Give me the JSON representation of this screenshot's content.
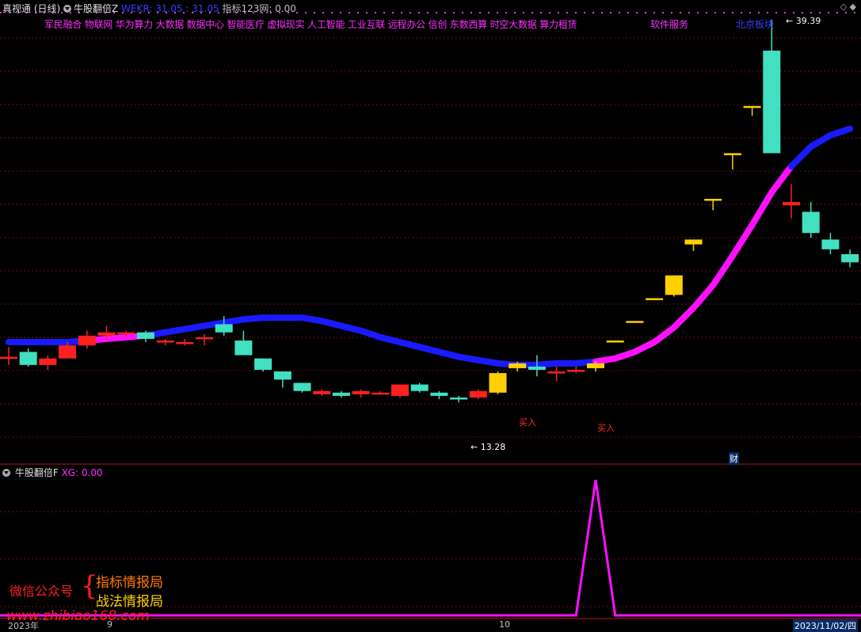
{
  "header": {
    "app_title": "真视通 (日线)",
    "indicator_name": "牛股翻倍Z",
    "wekr_label": "WEKR: 31.05",
    "wekr_value2": ": 31.05",
    "index_label": "指标123网: 0.00"
  },
  "concepts": {
    "main_list": "军民融合 物联网 华为算力 大数据 数据中心 智能医疗 虚拟现实 人工智能 工业互联 远程办公 信创 东数西算 时空大数据 算力租赁",
    "software": "软件服务",
    "beijing": "北京板块"
  },
  "annotations": {
    "high": "39.39",
    "low": "13.28",
    "buy_1": "买入",
    "buy_2": "买入",
    "cai_badge": "财"
  },
  "subchart": {
    "title": "牛股翻倍F",
    "xg_label": "XG: 0.00"
  },
  "promo": {
    "wechat": "微信公众号",
    "line1": "指标情报局",
    "line2": "战法情报局",
    "url": "www.zhibiao168.com"
  },
  "axis": {
    "year": "2023年",
    "m9": "9",
    "m10": "10",
    "last_date": "2023/11/02/四"
  },
  "colors": {
    "up": "#ff2020",
    "down": "#40e0c0",
    "gold": "#ffd000",
    "ma_blue": "#1a1aff",
    "ma_pink": "#ff10ff",
    "grid": "#6a1010"
  },
  "chart_data": {
    "type": "candlestick",
    "price_range": [
      13.28,
      39.39
    ],
    "candles": [
      {
        "o": 18.7,
        "c": 18.6,
        "h": 19.3,
        "l": 18.2,
        "k": "cross"
      },
      {
        "o": 19.0,
        "c": 18.2,
        "h": 19.2,
        "l": 18.1,
        "k": "down"
      },
      {
        "o": 18.2,
        "c": 18.6,
        "h": 18.8,
        "l": 17.9,
        "k": "up"
      },
      {
        "o": 18.6,
        "c": 19.4,
        "h": 19.6,
        "l": 18.6,
        "k": "up"
      },
      {
        "o": 19.4,
        "c": 20.0,
        "h": 20.3,
        "l": 19.2,
        "k": "up"
      },
      {
        "o": 20.0,
        "c": 20.2,
        "h": 20.6,
        "l": 19.7,
        "k": "up"
      },
      {
        "o": 20.2,
        "c": 20.1,
        "h": 20.3,
        "l": 19.9,
        "k": "cross"
      },
      {
        "o": 20.2,
        "c": 19.8,
        "h": 20.3,
        "l": 19.6,
        "k": "down"
      },
      {
        "o": 19.7,
        "c": 19.6,
        "h": 19.8,
        "l": 19.4,
        "k": "cross"
      },
      {
        "o": 19.6,
        "c": 19.6,
        "h": 19.8,
        "l": 19.4,
        "k": "cross"
      },
      {
        "o": 19.9,
        "c": 19.9,
        "h": 20.1,
        "l": 19.4,
        "k": "cross"
      },
      {
        "o": 20.7,
        "c": 20.2,
        "h": 21.2,
        "l": 20.0,
        "k": "down"
      },
      {
        "o": 19.7,
        "c": 18.8,
        "h": 20.3,
        "l": 18.8,
        "k": "down"
      },
      {
        "o": 18.6,
        "c": 17.9,
        "h": 18.6,
        "l": 17.8,
        "k": "down"
      },
      {
        "o": 17.8,
        "c": 17.3,
        "h": 17.8,
        "l": 16.8,
        "k": "down"
      },
      {
        "o": 17.1,
        "c": 16.6,
        "h": 17.1,
        "l": 16.5,
        "k": "down"
      },
      {
        "o": 16.6,
        "c": 16.4,
        "h": 16.7,
        "l": 16.3,
        "k": "up"
      },
      {
        "o": 16.5,
        "c": 16.3,
        "h": 16.6,
        "l": 16.2,
        "k": "down"
      },
      {
        "o": 16.4,
        "c": 16.6,
        "h": 16.7,
        "l": 16.2,
        "k": "up"
      },
      {
        "o": 16.5,
        "c": 16.5,
        "h": 16.6,
        "l": 16.4,
        "k": "cross"
      },
      {
        "o": 16.3,
        "c": 17.0,
        "h": 17.0,
        "l": 16.2,
        "k": "up"
      },
      {
        "o": 17.0,
        "c": 16.6,
        "h": 17.1,
        "l": 16.5,
        "k": "down"
      },
      {
        "o": 16.5,
        "c": 16.3,
        "h": 16.6,
        "l": 16.1,
        "k": "down"
      },
      {
        "o": 16.2,
        "c": 16.1,
        "h": 16.3,
        "l": 15.9,
        "k": "down"
      },
      {
        "o": 16.2,
        "c": 16.6,
        "h": 16.7,
        "l": 16.1,
        "k": "up"
      },
      {
        "o": 16.5,
        "c": 17.7,
        "h": 17.8,
        "l": 16.4,
        "k": "gold"
      },
      {
        "o": 18.0,
        "c": 18.3,
        "h": 18.4,
        "l": 17.8,
        "k": "gold"
      },
      {
        "o": 18.1,
        "c": 17.9,
        "h": 18.8,
        "l": 17.5,
        "k": "down"
      },
      {
        "o": 17.8,
        "c": 17.8,
        "h": 18.1,
        "l": 17.2,
        "k": "cross"
      },
      {
        "o": 17.9,
        "c": 17.9,
        "h": 18.1,
        "l": 17.7,
        "k": "cross"
      },
      {
        "o": 18.0,
        "c": 18.3,
        "h": 18.4,
        "l": 17.8,
        "k": "gold"
      },
      {
        "o": 19.7,
        "c": 19.7,
        "h": 19.7,
        "l": 19.7,
        "k": "gold"
      },
      {
        "o": 20.9,
        "c": 20.9,
        "h": 20.9,
        "l": 20.9,
        "k": "gold"
      },
      {
        "o": 22.3,
        "c": 22.3,
        "h": 22.3,
        "l": 22.3,
        "k": "gold"
      },
      {
        "o": 22.5,
        "c": 23.7,
        "h": 23.7,
        "l": 22.4,
        "k": "gold"
      },
      {
        "o": 25.6,
        "c": 25.9,
        "h": 25.9,
        "l": 25.2,
        "k": "gold"
      },
      {
        "o": 28.4,
        "c": 28.4,
        "h": 28.4,
        "l": 27.7,
        "k": "gold"
      },
      {
        "o": 31.2,
        "c": 31.2,
        "h": 31.2,
        "l": 30.2,
        "k": "gold"
      },
      {
        "o": 34.1,
        "c": 34.1,
        "h": 34.1,
        "l": 33.5,
        "k": "gold"
      },
      {
        "o": 37.5,
        "c": 31.2,
        "h": 39.4,
        "l": 31.2,
        "k": "down"
      },
      {
        "o": 28.2,
        "c": 28.0,
        "h": 29.3,
        "l": 27.2,
        "k": "up"
      },
      {
        "o": 27.6,
        "c": 26.3,
        "h": 28.2,
        "l": 26.0,
        "k": "down"
      },
      {
        "o": 25.9,
        "c": 25.3,
        "h": 26.3,
        "l": 25.0,
        "k": "down"
      },
      {
        "o": 25.0,
        "c": 24.5,
        "h": 25.3,
        "l": 24.2,
        "k": "down"
      }
    ],
    "ma_line": [
      19.6,
      19.6,
      19.6,
      19.6,
      19.7,
      19.8,
      19.9,
      20.0,
      20.2,
      20.4,
      20.6,
      20.8,
      21.0,
      21.1,
      21.1,
      21.1,
      20.9,
      20.6,
      20.3,
      19.9,
      19.6,
      19.3,
      19.0,
      18.7,
      18.5,
      18.3,
      18.2,
      18.2,
      18.3,
      18.3,
      18.4,
      18.6,
      19.0,
      19.6,
      20.5,
      21.7,
      23.1,
      24.9,
      26.8,
      28.8,
      30.4,
      31.6,
      32.3,
      32.7
    ],
    "ma_pink_ranges": [
      [
        4,
        6
      ],
      [
        30,
        39
      ]
    ],
    "signal_xg": {
      "peak_index": 30,
      "peak_value": 1
    }
  }
}
